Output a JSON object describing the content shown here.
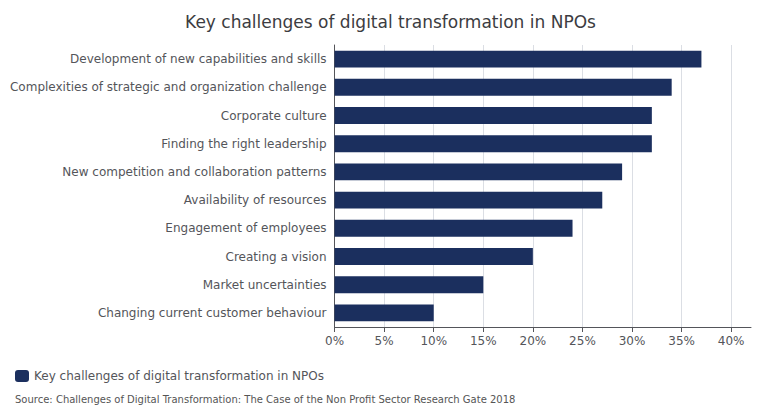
{
  "chart_data": {
    "type": "bar",
    "orientation": "horizontal",
    "title": "Key challenges of digital transformation in NPOs",
    "categories": [
      "Changing current customer behaviour",
      "Market uncertainties",
      "Creating a vision",
      "Engagement of employees",
      "Availability of resources",
      "New competition and collaboration patterns",
      "Finding the right leadership",
      "Corporate culture",
      "Complexities of strategic and organization challenge",
      "Development of new capabilities and skills"
    ],
    "series": [
      {
        "name": "Key challenges of digital transformation in NPOs",
        "color": "#1b2f5e",
        "values": [
          0.1,
          0.15,
          0.2,
          0.24,
          0.27,
          0.29,
          0.32,
          0.32,
          0.34,
          0.37
        ]
      }
    ],
    "xlim": [
      0,
      0.42
    ],
    "xticks": [
      {
        "value": 0.0,
        "label": "0%"
      },
      {
        "value": 0.05,
        "label": "5%"
      },
      {
        "value": 0.1,
        "label": "10%"
      },
      {
        "value": 0.15,
        "label": "15%"
      },
      {
        "value": 0.2,
        "label": "20%"
      },
      {
        "value": 0.25,
        "label": "25%"
      },
      {
        "value": 0.3,
        "label": "30%"
      },
      {
        "value": 0.35,
        "label": "35%"
      },
      {
        "value": 0.4,
        "label": "40%"
      }
    ],
    "grid": true,
    "legend": "bottom",
    "annotations": [
      "Source: Challenges of Digital Transformation: The Case of the Non Profit Sector Research Gate 2018"
    ]
  }
}
